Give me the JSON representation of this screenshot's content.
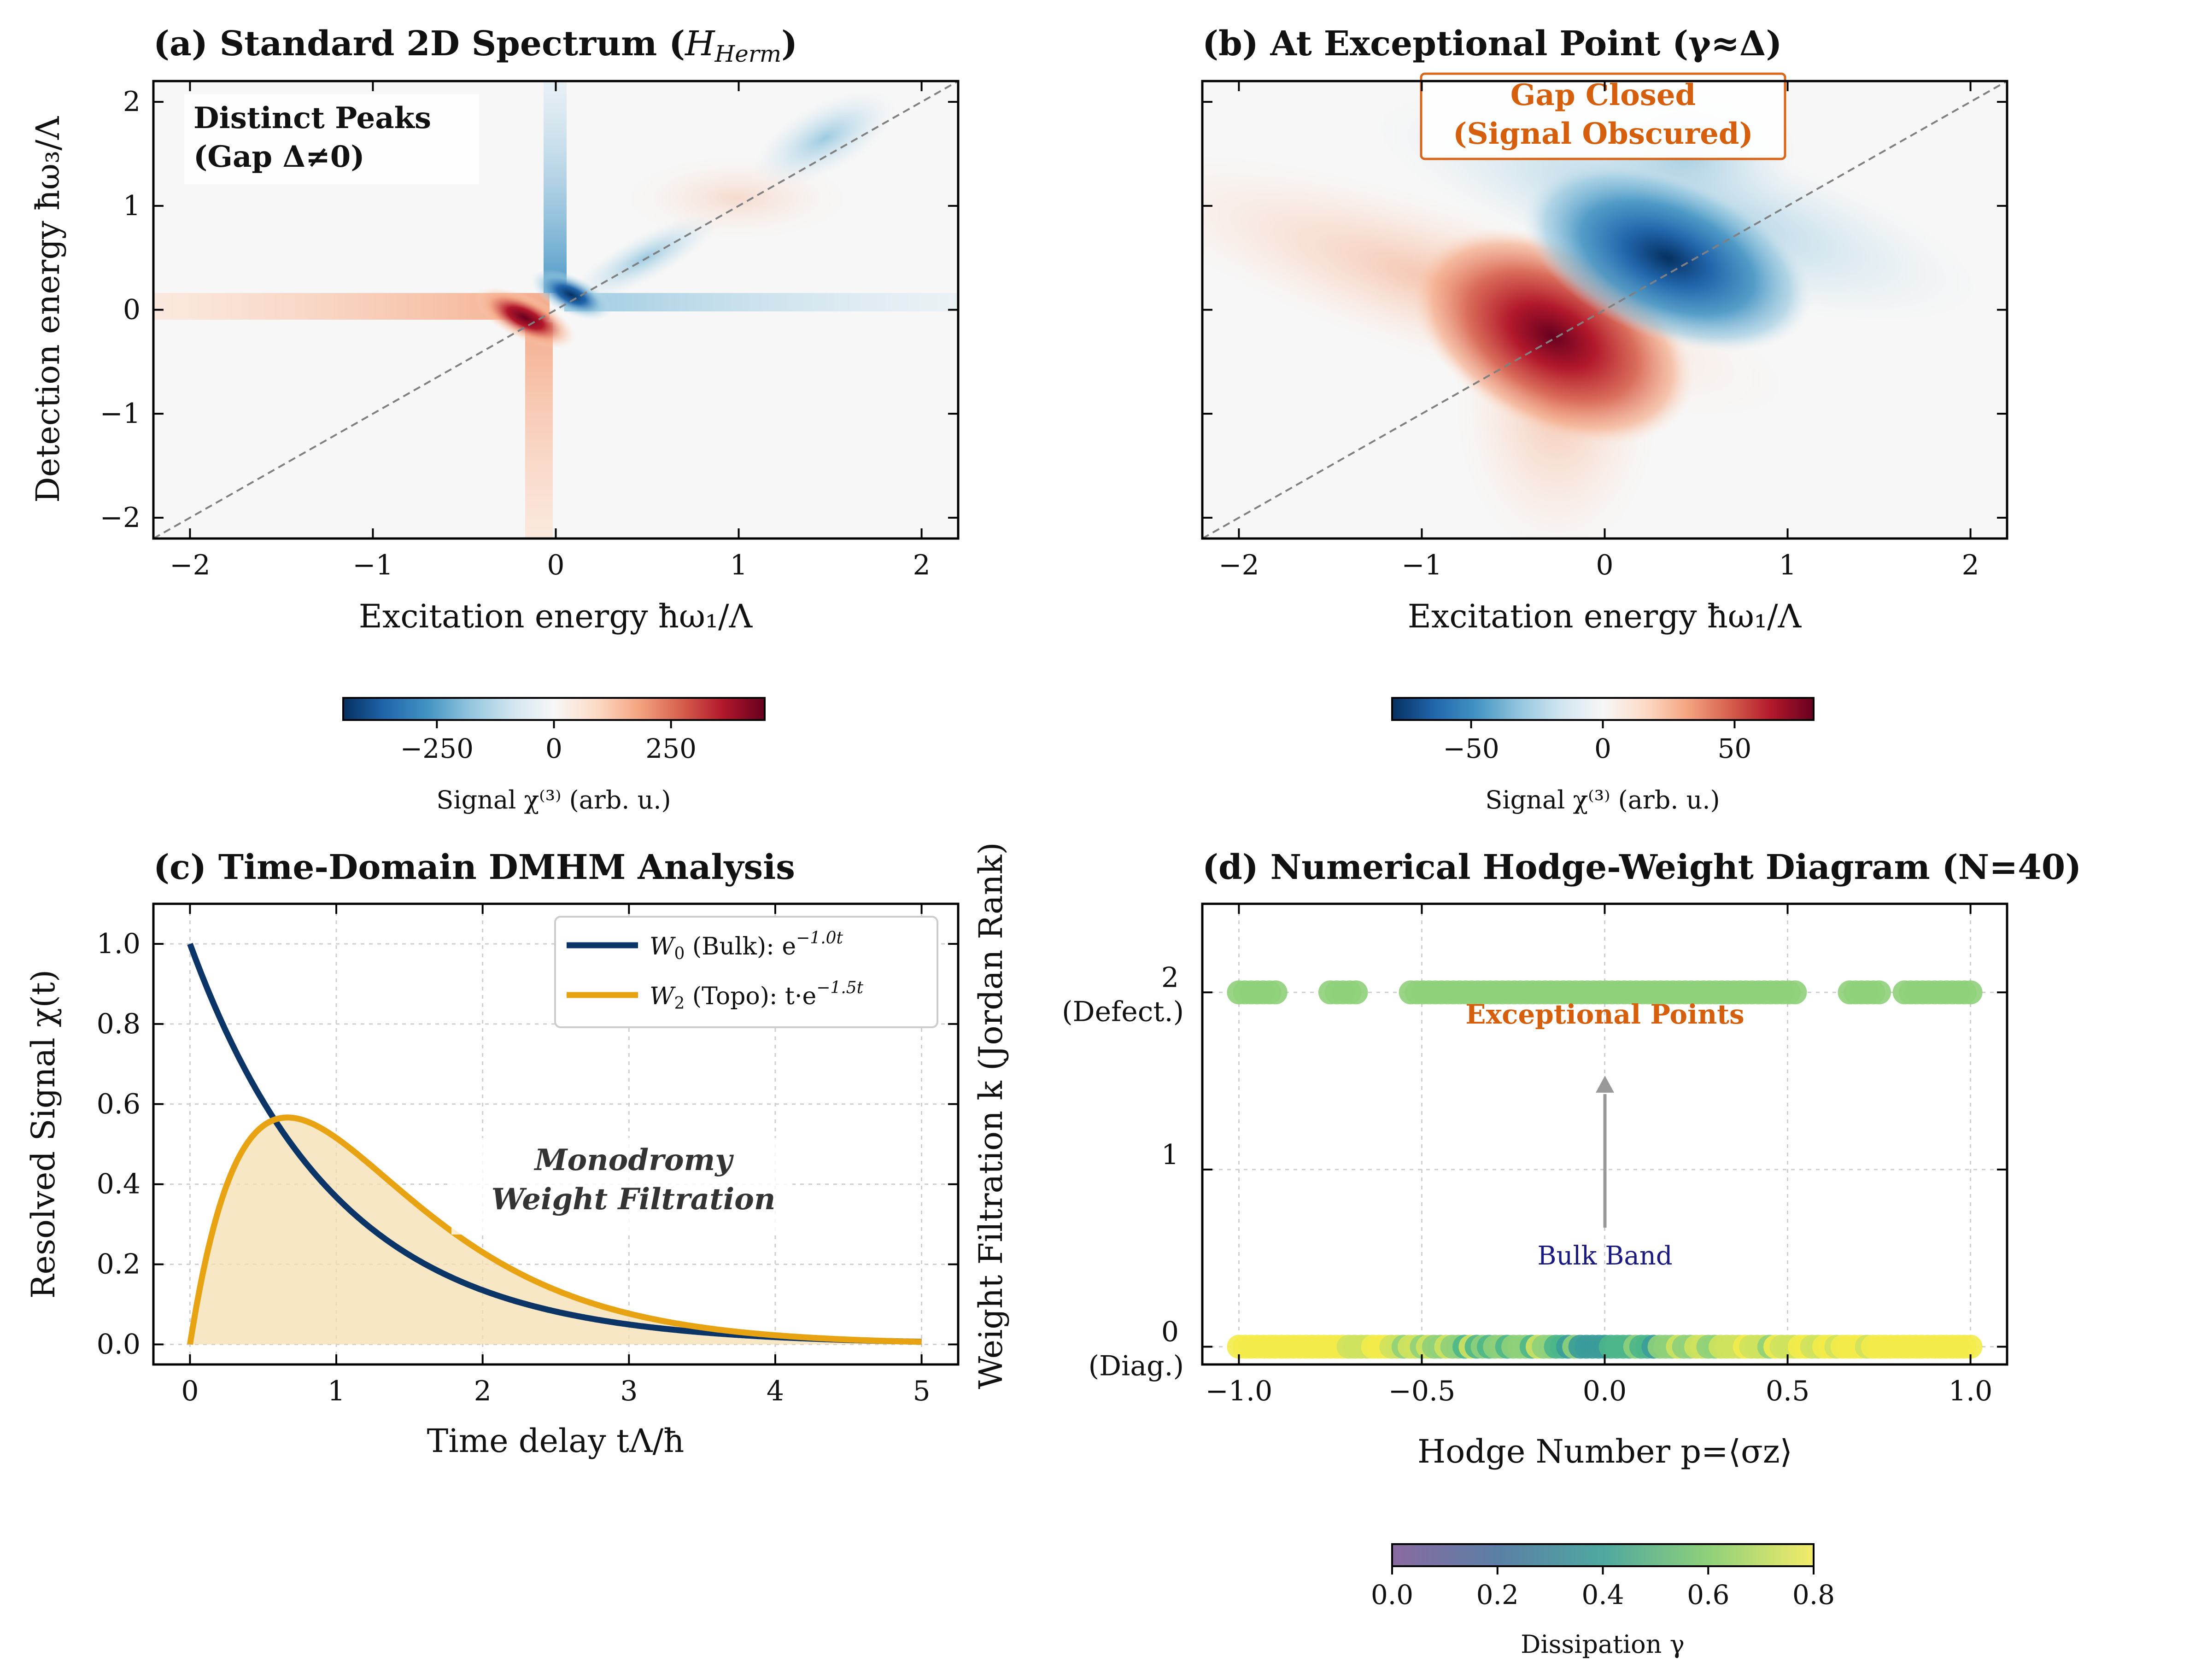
{
  "figure": {
    "panels": [
      {
        "id": "a",
        "title": "(a) Standard 2D Spectrum (",
        "title_math": "H",
        "title_math_sub": "Herm",
        "title_end": ")",
        "xlabel": "Excitation energy ħω₁/Λ",
        "ylabel": "Detection energy ħω₃/Λ",
        "annotation_line1": "Distinct Peaks",
        "annotation_line2": "(Gap Δ≠0)",
        "colorbar_label": "Signal χ⁽³⁾ (arb. u.)"
      },
      {
        "id": "b",
        "title": "(b) At Exceptional Point (γ≈Δ)",
        "xlabel": "Excitation energy ħω₁/Λ",
        "annotation_line1": "Gap Closed",
        "annotation_line2": "(Signal Obscured)",
        "colorbar_label": "Signal χ⁽³⁾ (arb. u.)"
      },
      {
        "id": "c",
        "title": "(c) Time-Domain DMHM Analysis",
        "xlabel": "Time delay tΛ/ħ",
        "ylabel": "Resolved Signal χ(t)",
        "annotation_line1": "Monodromy",
        "annotation_line2": "Weight Filtration"
      },
      {
        "id": "d",
        "title": "(d) Numerical Hodge-Weight Diagram (N=40)",
        "xlabel": "Hodge Number p=⟨σz⟩",
        "ylabel": "Weight Filtration k (Jordan Rank)",
        "annotation_ep": "Exceptional Points",
        "annotation_bulk": "Bulk Band",
        "colorbar_label": "Dissipation γ"
      }
    ],
    "colors": {
      "w0": "#0b3566",
      "w2": "#e8a312",
      "w2_fill": "#f6dfb0",
      "orange_text": "#d65f0e",
      "navy_text": "#1a1a80",
      "diag_line": "#808080"
    }
  },
  "chart_data": [
    {
      "type": "heatmap",
      "panel": "a",
      "title": "(a) Standard 2D Spectrum (H_Herm)",
      "xlabel": "Excitation energy ħω₁/Λ",
      "ylabel": "Detection energy ħω₃/Λ",
      "xlim": [
        -2.2,
        2.2
      ],
      "ylim": [
        -2.2,
        2.2
      ],
      "xticks": [
        "−2",
        "−1",
        "0",
        "1",
        "2"
      ],
      "yticks": [
        "−2",
        "−1",
        "0",
        "1",
        "2"
      ],
      "colormap": "RdBu_r",
      "colorbar_range": [
        -450,
        450
      ],
      "colorbar_ticks": [
        "−250",
        "0",
        "250"
      ],
      "features": [
        {
          "x": -0.1,
          "y": -0.05,
          "value": 450,
          "label": "red peak"
        },
        {
          "x": 0.1,
          "y": 0.1,
          "value": -450,
          "label": "blue peak"
        },
        {
          "x": 1.5,
          "y": 1.5,
          "value": -200,
          "label": "upper diagonal peak"
        }
      ],
      "diagonal": true
    },
    {
      "type": "heatmap",
      "panel": "b",
      "title": "(b) At Exceptional Point (γ≈Δ)",
      "xlabel": "Excitation energy ħω₁/Λ",
      "xlim": [
        -2.2,
        2.2
      ],
      "ylim": [
        -2.2,
        2.2
      ],
      "xticks": [
        "−2",
        "−1",
        "0",
        "1",
        "2"
      ],
      "colormap": "RdBu_r",
      "colorbar_range": [
        -80,
        80
      ],
      "colorbar_ticks": [
        "−50",
        "0",
        "50"
      ],
      "features": [
        {
          "x": -0.25,
          "y": -0.2,
          "value": 80,
          "label": "broad red lobe"
        },
        {
          "x": 0.35,
          "y": 0.45,
          "value": -80,
          "label": "broad blue lobe"
        }
      ],
      "diagonal": true
    },
    {
      "type": "line",
      "panel": "c",
      "title": "(c) Time-Domain DMHM Analysis",
      "xlabel": "Time delay tΛ/ħ",
      "ylabel": "Resolved Signal χ(t)",
      "xlim": [
        -0.25,
        5.25
      ],
      "ylim": [
        -0.05,
        1.1
      ],
      "xticks": [
        "0",
        "1",
        "2",
        "3",
        "4",
        "5"
      ],
      "yticks": [
        "0.0",
        "0.2",
        "0.4",
        "0.6",
        "0.8",
        "1.0"
      ],
      "grid": true,
      "legend_position": "top-right",
      "series": [
        {
          "name": "W₀ (Bulk): e^(−1.0t)",
          "legend_name": "W",
          "legend_sub": "0",
          "legend_rest": " (Bulk): e",
          "legend_sup": "−1.0t",
          "formula": "exp(-1.0*t)",
          "rate": 1.0,
          "form": "exp",
          "color": "#0b3566"
        },
        {
          "name": "W₂ (Topo): t·e^(−1.5t)",
          "legend_name": "W",
          "legend_sub": "2",
          "legend_rest": " (Topo): t·e",
          "legend_sup": "−1.5t",
          "formula": "2.3*t*exp(-1.5*t)",
          "rate": 1.5,
          "scale": 2.31,
          "form": "texp",
          "color": "#e8a312",
          "filled": true
        }
      ]
    },
    {
      "type": "scatter",
      "panel": "d",
      "title": "(d) Numerical Hodge-Weight Diagram (N=40)",
      "xlabel": "Hodge Number p=⟨σz⟩",
      "ylabel": "Weight Filtration k (Jordan Rank)",
      "xlim": [
        -1.1,
        1.1
      ],
      "ylim": [
        -0.1,
        2.5
      ],
      "xticks": [
        "−1.0",
        "−0.5",
        "0.0",
        "0.5",
        "1.0"
      ],
      "yticks": [
        {
          "value": 0,
          "label": "0",
          "sublabel": "(Diag.)"
        },
        {
          "value": 1,
          "label": "1",
          "sublabel": ""
        },
        {
          "value": 2,
          "label": "2",
          "sublabel": "(Defect.)"
        }
      ],
      "grid": true,
      "colormap": "viridis",
      "colorbar_range": [
        0.0,
        0.8
      ],
      "colorbar_ticks": [
        "0.0",
        "0.2",
        "0.4",
        "0.6",
        "0.8"
      ],
      "rows": [
        {
          "k": 2,
          "x_segments": [
            [
              -1.0,
              -0.9
            ],
            [
              -0.75,
              -0.68
            ],
            [
              -0.53,
              0.52
            ],
            [
              0.67,
              0.75
            ],
            [
              0.82,
              1.0
            ]
          ],
          "gamma_range": [
            0.5,
            0.6
          ]
        },
        {
          "k": 0,
          "x_segments": [
            [
              -1.0,
              1.0
            ]
          ],
          "gamma_range": [
            0.2,
            0.8
          ]
        }
      ],
      "arrow": {
        "from": [
          0.0,
          0.6
        ],
        "to": [
          0.0,
          1.5
        ]
      }
    }
  ]
}
